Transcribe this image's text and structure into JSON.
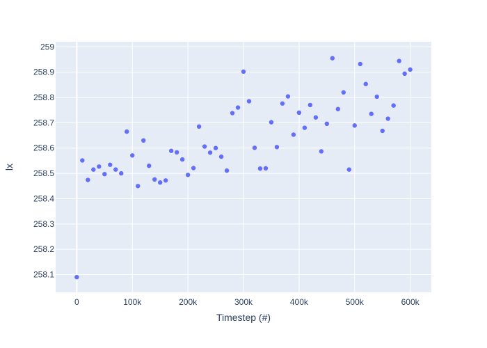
{
  "chart_data": {
    "type": "scatter",
    "title": "",
    "xlabel": "Timestep (#)",
    "ylabel": "lx",
    "xlim": [
      -38000,
      638000
    ],
    "ylim": [
      258.03,
      259.02
    ],
    "x_ticks": [
      {
        "value": 0,
        "label": "0"
      },
      {
        "value": 100000,
        "label": "100k"
      },
      {
        "value": 200000,
        "label": "200k"
      },
      {
        "value": 300000,
        "label": "300k"
      },
      {
        "value": 400000,
        "label": "400k"
      },
      {
        "value": 500000,
        "label": "500k"
      },
      {
        "value": 600000,
        "label": "600k"
      }
    ],
    "y_ticks": [
      {
        "value": 258.1,
        "label": "258.1"
      },
      {
        "value": 258.2,
        "label": "258.2"
      },
      {
        "value": 258.3,
        "label": "258.3"
      },
      {
        "value": 258.4,
        "label": "258.4"
      },
      {
        "value": 258.5,
        "label": "258.5"
      },
      {
        "value": 258.6,
        "label": "258.6"
      },
      {
        "value": 258.7,
        "label": "258.7"
      },
      {
        "value": 258.8,
        "label": "258.8"
      },
      {
        "value": 258.9,
        "label": "258.9"
      },
      {
        "value": 259,
        "label": "259"
      }
    ],
    "grid": true,
    "colors": {
      "plot_background": "#e5ecf6",
      "grid": "#ffffff",
      "marker": "#636efa",
      "text": "#2a3f5f"
    },
    "series": [
      {
        "x": [
          0,
          10000,
          20000,
          30000,
          40000,
          50000,
          60000,
          70000,
          80000,
          90000,
          100000,
          110000,
          120000,
          130000,
          140000,
          150000,
          160000,
          170000,
          180000,
          190000,
          200000,
          210000,
          220000,
          230000,
          240000,
          250000,
          260000,
          270000,
          280000,
          290000,
          300000,
          310000,
          320000,
          330000,
          340000,
          350000,
          360000,
          370000,
          380000,
          390000,
          400000,
          410000,
          420000,
          430000,
          440000,
          450000,
          460000,
          470000,
          480000,
          490000,
          500000,
          510000,
          520000,
          530000,
          540000,
          550000,
          560000,
          570000,
          580000,
          590000,
          600000
        ],
        "y": [
          258.09,
          258.551,
          258.474,
          258.515,
          258.527,
          258.497,
          258.534,
          258.515,
          258.5,
          258.665,
          258.571,
          258.45,
          258.63,
          258.53,
          258.476,
          258.464,
          258.472,
          258.589,
          258.583,
          258.555,
          258.494,
          258.521,
          258.685,
          258.606,
          258.582,
          258.6,
          258.566,
          258.511,
          258.738,
          258.76,
          258.902,
          258.785,
          258.601,
          258.519,
          258.52,
          258.702,
          258.604,
          258.776,
          258.804,
          258.653,
          258.74,
          258.68,
          258.77,
          258.721,
          258.587,
          258.696,
          258.955,
          258.754,
          258.82,
          258.515,
          258.689,
          258.932,
          258.853,
          258.735,
          258.803,
          258.668,
          258.716,
          258.768,
          258.944,
          258.894,
          258.91
        ]
      }
    ]
  }
}
